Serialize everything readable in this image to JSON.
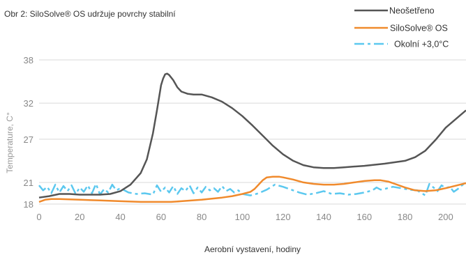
{
  "chart_data": {
    "type": "line",
    "title": "Obr 2: SiloSolve® OS udržuje povrchy stabilní",
    "xlabel": "Aerobní vystavení, hodiny",
    "ylabel": "Temperature, C°",
    "xlim": [
      0,
      210
    ],
    "ylim": [
      18,
      38
    ],
    "xticks": [
      0,
      20,
      40,
      60,
      80,
      100,
      120,
      140,
      160,
      180,
      200
    ],
    "yticks": [
      18,
      21,
      27,
      32,
      38
    ],
    "grid": "horizontal",
    "legend_position": "top-right",
    "series": [
      {
        "name": "Neošetřeno",
        "color": "#555555",
        "style": "solid",
        "x": [
          0,
          5,
          10,
          15,
          20,
          25,
          30,
          35,
          40,
          45,
          50,
          53,
          56,
          58,
          60,
          61,
          62,
          63,
          64,
          66,
          68,
          70,
          73,
          76,
          80,
          85,
          90,
          95,
          100,
          105,
          110,
          115,
          120,
          125,
          130,
          135,
          140,
          145,
          150,
          160,
          170,
          180,
          185,
          190,
          195,
          200,
          210
        ],
        "y": [
          18.9,
          19.1,
          19.4,
          19.4,
          19.3,
          19.3,
          19.3,
          19.4,
          19.8,
          20.7,
          22.3,
          24.2,
          27.8,
          31.0,
          34.5,
          35.4,
          36.0,
          36.1,
          35.9,
          35.2,
          34.2,
          33.6,
          33.3,
          33.2,
          33.2,
          32.8,
          32.2,
          31.3,
          30.2,
          28.9,
          27.5,
          26.1,
          24.9,
          24.0,
          23.4,
          23.1,
          23.0,
          23.0,
          23.1,
          23.3,
          23.6,
          24.0,
          24.5,
          25.4,
          26.9,
          28.6,
          31.0
        ]
      },
      {
        "name": "SiloSolve® OS",
        "color": "#f08a2c",
        "style": "solid",
        "x": [
          0,
          3,
          6,
          10,
          20,
          30,
          40,
          50,
          60,
          65,
          70,
          80,
          90,
          95,
          100,
          104,
          106,
          108,
          110,
          112,
          115,
          118,
          120,
          125,
          130,
          135,
          140,
          145,
          150,
          155,
          160,
          165,
          168,
          172,
          175,
          180,
          185,
          190,
          195,
          200,
          210
        ],
        "y": [
          18.3,
          18.6,
          18.7,
          18.7,
          18.6,
          18.5,
          18.4,
          18.3,
          18.3,
          18.3,
          18.4,
          18.6,
          18.9,
          19.1,
          19.4,
          19.7,
          20.1,
          20.7,
          21.3,
          21.7,
          21.8,
          21.8,
          21.7,
          21.4,
          21.0,
          20.8,
          20.7,
          20.7,
          20.8,
          21.0,
          21.2,
          21.3,
          21.3,
          21.1,
          20.8,
          20.3,
          19.9,
          19.8,
          19.9,
          20.2,
          20.9
        ]
      },
      {
        "name": "Okolní +3,0°C",
        "color": "#5bc8ef",
        "style": "dash-dot",
        "x": [
          0,
          2,
          4,
          6,
          8,
          10,
          12,
          14,
          16,
          18,
          20,
          22,
          24,
          26,
          28,
          30,
          32,
          34,
          36,
          38,
          40,
          44,
          48,
          52,
          56,
          58,
          60,
          62,
          64,
          66,
          68,
          70,
          72,
          74,
          76,
          78,
          80,
          82,
          84,
          86,
          88,
          90,
          92,
          94,
          96,
          98,
          100,
          104,
          108,
          112,
          116,
          120,
          124,
          128,
          132,
          136,
          140,
          144,
          148,
          152,
          156,
          160,
          164,
          166,
          168,
          170,
          174,
          178,
          182,
          186,
          190,
          192,
          194,
          196,
          198,
          200,
          202,
          204,
          206,
          208,
          210
        ],
        "y": [
          20.6,
          19.9,
          20.4,
          19.5,
          20.7,
          19.6,
          20.5,
          19.8,
          20.6,
          19.4,
          20.3,
          19.7,
          20.6,
          19.5,
          20.8,
          19.3,
          20.1,
          19.6,
          20.7,
          19.9,
          20.2,
          19.6,
          19.4,
          19.5,
          19.3,
          20.6,
          19.7,
          20.3,
          19.6,
          20.5,
          19.4,
          20.2,
          19.8,
          20.6,
          19.5,
          20.3,
          19.6,
          20.4,
          19.9,
          20.2,
          19.7,
          20.5,
          19.8,
          20.1,
          19.6,
          19.9,
          19.4,
          19.2,
          19.5,
          20.0,
          20.7,
          20.4,
          20.0,
          19.6,
          19.3,
          19.5,
          19.8,
          19.4,
          19.5,
          19.3,
          19.4,
          19.6,
          19.9,
          20.3,
          20.0,
          20.1,
          20.4,
          20.2,
          20.0,
          19.9,
          19.2,
          20.8,
          20.3,
          19.8,
          20.6,
          20.2,
          20.4,
          19.7,
          20.1,
          20.6,
          21.0
        ]
      }
    ]
  }
}
